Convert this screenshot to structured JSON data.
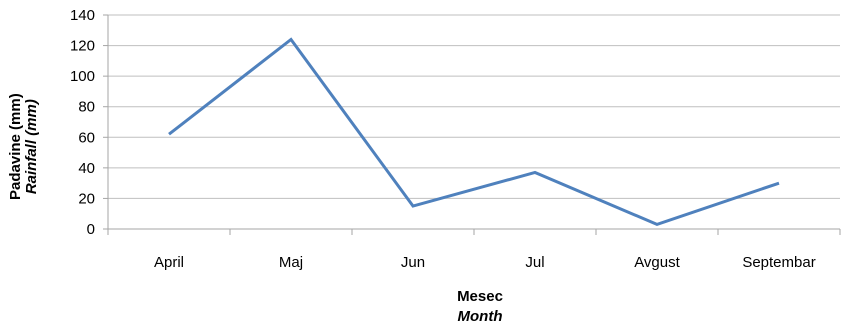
{
  "chart_data": {
    "type": "line",
    "categories": [
      "April",
      "Maj",
      "Jun",
      "Jul",
      "Avgust",
      "Septembar"
    ],
    "series": [
      {
        "values": [
          62,
          124,
          15,
          37,
          3,
          30
        ],
        "color": "#4F81BD"
      }
    ],
    "y_ticks": [
      "0",
      "20",
      "40",
      "60",
      "80",
      "100",
      "120",
      "140"
    ],
    "ylim": [
      0,
      140
    ],
    "ylabel": {
      "line1": "Padavine (mm)",
      "line2": "Rainfall (mm)"
    },
    "xlabel": {
      "line1": "Mesec",
      "line2": "Month"
    },
    "grid": true,
    "grid_color": "#BFBFBF",
    "axis_color": "#A6A6A6"
  }
}
